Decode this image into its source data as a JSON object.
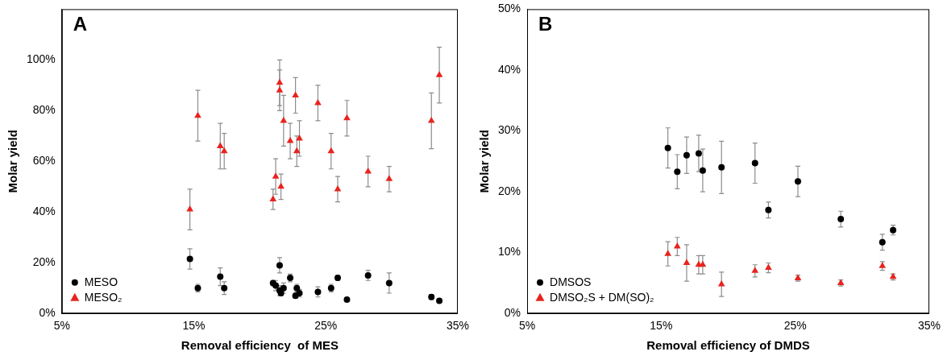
{
  "chart_data": [
    {
      "type": "scatter",
      "title": "A",
      "x_label": "Removal efficiency  of MES",
      "y_label": "Molar yield",
      "xlim": [
        5,
        35
      ],
      "xticks": [
        {
          "value": 5,
          "label": "5%"
        },
        {
          "value": 15,
          "label": "15%"
        },
        {
          "value": 25,
          "label": "25%"
        },
        {
          "value": 35,
          "label": "35%"
        }
      ],
      "ylim": [
        0,
        120
      ],
      "yticks": [
        {
          "value": 0,
          "label": "0%"
        },
        {
          "value": 20,
          "label": "20%"
        },
        {
          "value": 40,
          "label": "40%"
        },
        {
          "value": 60,
          "label": "60%"
        },
        {
          "value": 80,
          "label": "80%"
        },
        {
          "value": 100,
          "label": "100%"
        }
      ],
      "grid": false,
      "legend": "lower left",
      "series": [
        {
          "name": "MESO",
          "color": "#000000",
          "marker": "circle",
          "x": [
            14.7,
            15.3,
            17.0,
            17.3,
            21.0,
            21.2,
            21.5,
            21.5,
            21.6,
            21.8,
            22.3,
            22.7,
            22.8,
            23.0,
            24.4,
            25.4,
            25.9,
            26.6,
            28.2,
            29.8,
            33.0,
            33.6
          ],
          "values": [
            21.5,
            10,
            14.5,
            10,
            12,
            11,
            9,
            19,
            8,
            10,
            14,
            7,
            10,
            8,
            8.5,
            10,
            14,
            5.5,
            15,
            12,
            6.5,
            5
          ],
          "error": [
            4,
            1.5,
            3.5,
            2.5,
            1,
            2,
            2,
            3,
            1,
            2,
            1.5,
            1,
            1.5,
            1.5,
            2,
            1.5,
            1,
            0.5,
            2,
            4,
            1,
            0.5
          ]
        },
        {
          "name": "MESO₂",
          "color": "#e8231f",
          "marker": "triangle",
          "x": [
            14.7,
            15.3,
            17.0,
            17.3,
            21.0,
            21.2,
            21.5,
            21.5,
            21.6,
            21.8,
            22.3,
            22.7,
            22.8,
            23.0,
            24.4,
            25.4,
            25.9,
            26.6,
            28.2,
            29.8,
            33.0,
            33.6
          ],
          "values": [
            41,
            78,
            66,
            64,
            45,
            54,
            91,
            88,
            50,
            76,
            68,
            86,
            64,
            69,
            83,
            64,
            49,
            77,
            56,
            53,
            76,
            94
          ],
          "error": [
            8,
            10,
            9,
            7,
            4,
            7,
            9,
            8,
            5,
            10,
            7,
            7,
            6,
            7,
            7,
            7,
            5,
            7,
            6,
            5,
            11,
            11
          ]
        }
      ]
    },
    {
      "type": "scatter",
      "title": "B",
      "x_label": "Removal efficiency of DMDS",
      "y_label": "Molar yield",
      "xlim": [
        5,
        35
      ],
      "xticks": [
        {
          "value": 5,
          "label": "5%"
        },
        {
          "value": 15,
          "label": "15%"
        },
        {
          "value": 25,
          "label": "25%"
        },
        {
          "value": 35,
          "label": "35%"
        }
      ],
      "ylim": [
        0,
        50
      ],
      "yticks": [
        {
          "value": 0,
          "label": "0%"
        },
        {
          "value": 10,
          "label": "10%"
        },
        {
          "value": 20,
          "label": "20%"
        },
        {
          "value": 30,
          "label": "30%"
        },
        {
          "value": 40,
          "label": "40%"
        },
        {
          "value": 50,
          "label": "50%"
        }
      ],
      "grid": false,
      "legend": "lower left",
      "series": [
        {
          "name": "DMSOS",
          "color": "#000000",
          "marker": "circle",
          "x": [
            15.5,
            16.2,
            16.9,
            17.8,
            18.1,
            19.5,
            22.0,
            23.0,
            25.2,
            28.4,
            31.5,
            32.3
          ],
          "values": [
            27.2,
            23.3,
            26,
            26.3,
            23.5,
            24,
            24.7,
            17,
            21.7,
            15.5,
            11.7,
            13.7
          ],
          "error": [
            3.3,
            2.8,
            3,
            3,
            3.5,
            4.3,
            3.3,
            1.3,
            2.5,
            1.3,
            1.3,
            0.8
          ]
        },
        {
          "name": "DMSO₂S + DM(SO)₂",
          "color": "#e8231f",
          "marker": "triangle",
          "x": [
            15.5,
            16.2,
            16.9,
            17.8,
            18.1,
            19.5,
            22.0,
            23.0,
            25.2,
            28.4,
            31.5,
            32.3
          ],
          "values": [
            9.8,
            11,
            8.3,
            8,
            8,
            4.8,
            7,
            7.5,
            5.8,
            5,
            7.8,
            6
          ],
          "error": [
            2,
            1.5,
            3,
            1.5,
            1.5,
            2,
            1,
            0.8,
            0.5,
            0.5,
            0.7,
            0.5
          ]
        }
      ]
    }
  ]
}
